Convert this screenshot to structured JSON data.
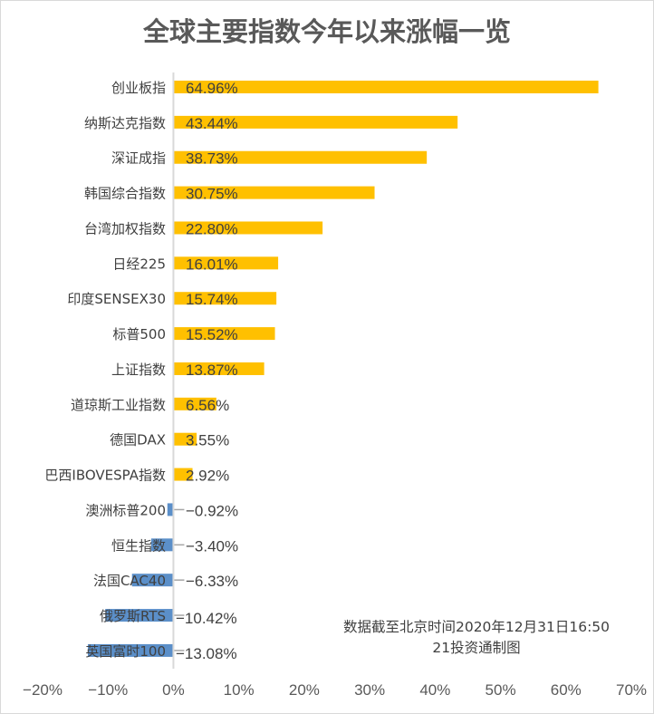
{
  "chart_data": {
    "type": "bar",
    "orientation": "horizontal",
    "title": "全球主要指数今年以来涨幅一览",
    "categories": [
      "创业板指",
      "纳斯达克指数",
      "深证成指",
      "韩国综合指数",
      "台湾加权指数",
      "日经225",
      "印度SENSEX30",
      "标普500",
      "上证指数",
      "道琼斯工业指数",
      "德国DAX",
      "巴西IBOVESPA指数",
      "澳洲标普200",
      "恒生指数",
      "法国CAC40",
      "俄罗斯RTS",
      "英国富时100"
    ],
    "values": [
      64.96,
      43.44,
      38.73,
      30.75,
      22.8,
      16.01,
      15.74,
      15.52,
      13.87,
      6.56,
      3.55,
      2.92,
      -0.92,
      -3.4,
      -6.33,
      -10.42,
      -13.08
    ],
    "value_labels": [
      "64.96%",
      "43.44%",
      "38.73%",
      "30.75%",
      "22.80%",
      "16.01%",
      "15.74%",
      "15.52%",
      "13.87%",
      "6.56%",
      "3.55%",
      "2.92%",
      "−0.92%",
      "−3.40%",
      "−6.33%",
      "−10.42%",
      "−13.08%"
    ],
    "xlim": [
      -20,
      70
    ],
    "xticks": [
      "−20%",
      "−10%",
      "0%",
      "10%",
      "20%",
      "30%",
      "40%",
      "50%",
      "60%",
      "70%"
    ],
    "grid": false,
    "colors": {
      "positive": "#ffc000",
      "negative": "#5b8fc9"
    },
    "annotations": [
      "数据截至北京时间2020年12月31日16:50",
      "21投资通制图"
    ]
  }
}
